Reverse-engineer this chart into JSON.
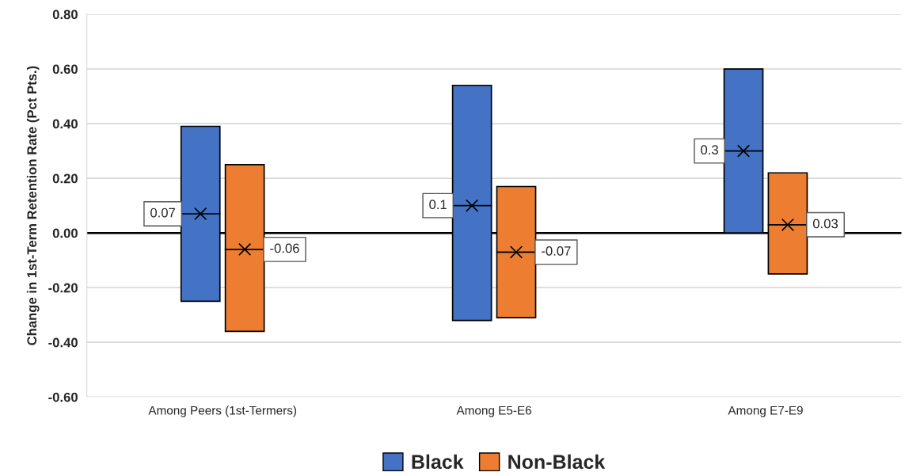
{
  "chart_data": {
    "type": "bar",
    "ylabel": "Change in 1st-Term Retention Rate (Pct Pts.)",
    "categories": [
      "Among Peers (1st-Termers)",
      "Among E5-E6",
      "Among E7-E9"
    ],
    "series": [
      {
        "name": "Black",
        "color": "#4472c4",
        "base": [
          -0.25,
          -0.32,
          0
        ],
        "values": [
          0.64,
          0.86,
          0.6
        ]
      },
      {
        "name": "Non-Black",
        "color": "#ed7d31",
        "base": [
          -0.36,
          -0.31,
          -0.15
        ],
        "values": [
          0.61,
          0.48,
          0.37
        ]
      },
      {
        "type": "scatter",
        "x": [
          "Among Peers (1st-Termers)",
          "Among E5-E6",
          "Among E7-E9"
        ],
        "values": [
          0.07,
          0.1,
          0.3
        ],
        "color": "#000000",
        "marker": "cross",
        "value_labels": [
          "0.07",
          "0.1",
          "0.3"
        ]
      },
      {
        "type": "scatter",
        "x": [
          "Among Peers (1st-Termers)",
          "Among E5-E6",
          "Among E7-E9"
        ],
        "values": [
          -0.06,
          -0.07,
          0.03
        ],
        "color": "#000000",
        "marker": "cross",
        "value_labels": [
          "-0.06",
          "-0.07",
          "0.03"
        ]
      }
    ],
    "ylim": [
      -0.6,
      0.8
    ],
    "yticks": [
      {
        "value": -0.6,
        "label": "-0.60"
      },
      {
        "value": -0.4,
        "label": "-0.40"
      },
      {
        "value": -0.2,
        "label": "-0.20"
      },
      {
        "value": 0,
        "label": "0.00"
      },
      {
        "value": 0.2,
        "label": "0.20"
      },
      {
        "value": 0.4,
        "label": "0.40"
      },
      {
        "value": 0.6,
        "label": "0.60"
      },
      {
        "value": 0.8,
        "label": "0.80"
      }
    ],
    "ref_lines": [
      {
        "axis": "y",
        "value": 0,
        "color": "#000000"
      }
    ],
    "grid": "y",
    "legend": "bottom"
  }
}
